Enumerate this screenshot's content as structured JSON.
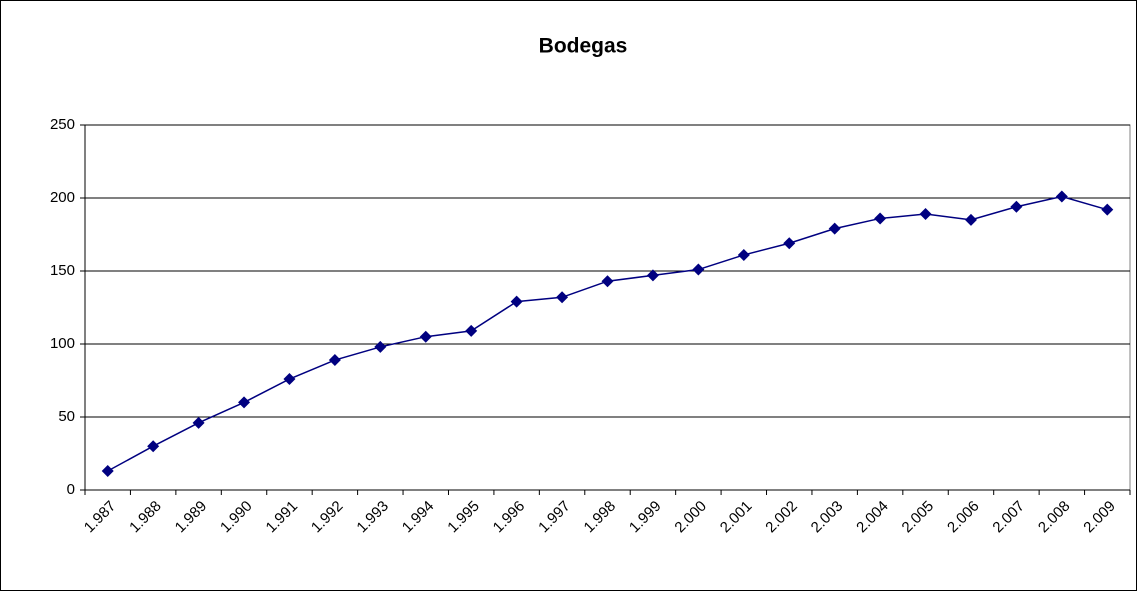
{
  "chart_data": {
    "type": "line",
    "title": "Bodegas",
    "categories": [
      "1.987",
      "1.988",
      "1.989",
      "1.990",
      "1.991",
      "1.992",
      "1.993",
      "1.994",
      "1.995",
      "1.996",
      "1.997",
      "1.998",
      "1.999",
      "2.000",
      "2.001",
      "2.002",
      "2.003",
      "2.004",
      "2.005",
      "2.006",
      "2.007",
      "2.008",
      "2.009"
    ],
    "values": [
      13,
      30,
      46,
      60,
      76,
      89,
      98,
      105,
      109,
      129,
      132,
      143,
      147,
      151,
      161,
      169,
      179,
      186,
      189,
      185,
      194,
      201,
      192
    ],
    "color": "#000080",
    "ylim": [
      0,
      250
    ],
    "yticks": [
      0,
      50,
      100,
      150,
      200,
      250
    ],
    "grid": true
  }
}
